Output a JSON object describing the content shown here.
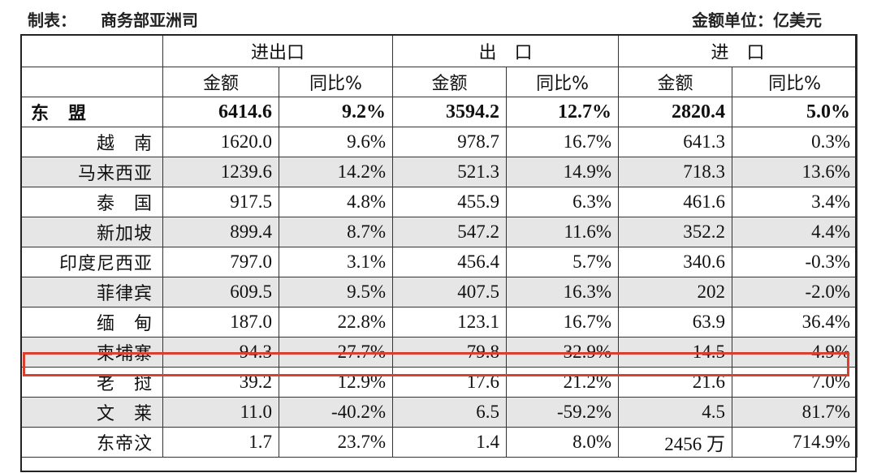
{
  "meta": {
    "compiler_label": "制表：",
    "compiler": "商务部亚洲司",
    "unit_label": "金额单位：亿美元"
  },
  "header": {
    "groups": [
      "进出口",
      "出　口",
      "进　口"
    ],
    "sub": [
      "金额",
      "同比%",
      "金额",
      "同比%",
      "金额",
      "同比%"
    ]
  },
  "rows": [
    {
      "name": "东　盟",
      "v": [
        "6414.6",
        "9.2%",
        "3594.2",
        "12.7%",
        "2820.4",
        "5.0%"
      ]
    },
    {
      "name": "越　南",
      "v": [
        "1620.0",
        "9.6%",
        "978.7",
        "16.7%",
        "641.3",
        "0.3%"
      ]
    },
    {
      "name": "马来西亚",
      "v": [
        "1239.6",
        "14.2%",
        "521.3",
        "14.9%",
        "718.3",
        "13.6%"
      ]
    },
    {
      "name": "泰　国",
      "v": [
        "917.5",
        "4.8%",
        "455.9",
        "6.3%",
        "461.6",
        "3.4%"
      ]
    },
    {
      "name": "新加坡",
      "v": [
        "899.4",
        "8.7%",
        "547.2",
        "11.6%",
        "352.2",
        "4.4%"
      ]
    },
    {
      "name": "印度尼西亚",
      "v": [
        "797.0",
        "3.1%",
        "456.4",
        "5.7%",
        "340.6",
        "-0.3%"
      ]
    },
    {
      "name": "菲律宾",
      "v": [
        "609.5",
        "9.5%",
        "407.5",
        "16.3%",
        "202",
        "-2.0%"
      ]
    },
    {
      "name": "缅　甸",
      "v": [
        "187.0",
        "22.8%",
        "123.1",
        "16.7%",
        "63.9",
        "36.4%"
      ]
    },
    {
      "name": "柬埔寨",
      "v": [
        "94.3",
        "27.7%",
        "79.8",
        "32.9%",
        "14.5",
        "4.9%"
      ]
    },
    {
      "name": "老　挝",
      "v": [
        "39.2",
        "12.9%",
        "17.6",
        "21.2%",
        "21.6",
        "7.0%"
      ]
    },
    {
      "name": "文　莱",
      "v": [
        "11.0",
        "-40.2%",
        "6.5",
        "-59.2%",
        "4.5",
        "81.7%"
      ]
    },
    {
      "name": "东帝汶",
      "v": [
        "1.7",
        "23.7%",
        "1.4",
        "8.0%",
        "2456 万",
        "714.9%"
      ]
    }
  ],
  "colors": {
    "shade": "#e6e6e6",
    "highlight": "#d9402f"
  }
}
